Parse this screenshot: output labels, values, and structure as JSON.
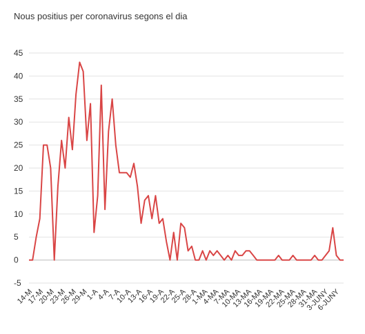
{
  "chart_data": {
    "type": "line",
    "title": "Nous positius per coronavirus segons el dia",
    "xlabel": "",
    "ylabel": "",
    "ylim": [
      -5,
      45
    ],
    "yticks": [
      -5,
      0,
      5,
      10,
      15,
      20,
      25,
      30,
      35,
      40,
      45
    ],
    "xticks": [
      "14-M",
      "17-M",
      "20-M",
      "23-M",
      "26-M",
      "29-M",
      "1-A",
      "4-A",
      "7-A",
      "10-A",
      "13-A",
      "16-A",
      "19-A",
      "22-A",
      "25-A",
      "28-A",
      "1-MA",
      "4-MA",
      "7-MA",
      "10-MA",
      "13-MA",
      "16-MA",
      "19-MA",
      "22-MA",
      "25-MA",
      "28-MA",
      "31-MA",
      "3-JUNY",
      "6-JUNY"
    ],
    "grid": true,
    "legend": "none",
    "colors": {
      "line": "#d94545"
    },
    "series": [
      {
        "values": [
          0,
          0,
          5,
          9,
          25,
          25,
          20,
          0,
          16,
          26,
          20,
          31,
          24,
          36,
          43,
          41,
          26,
          34,
          6,
          14,
          38,
          11,
          28,
          35,
          25,
          19,
          19,
          19,
          18,
          21,
          16,
          8,
          13,
          14,
          9,
          14,
          8,
          9,
          4,
          0,
          6,
          0,
          8,
          7,
          2,
          3,
          0,
          0,
          2,
          0,
          2,
          1,
          2,
          1,
          0,
          1,
          0,
          2,
          1,
          1,
          2,
          2,
          1,
          0,
          0,
          0,
          0,
          0,
          0,
          1,
          0,
          0,
          0,
          1,
          0,
          0,
          0,
          0,
          0,
          1,
          0,
          0,
          1,
          2,
          7,
          1,
          0,
          0
        ]
      }
    ]
  }
}
